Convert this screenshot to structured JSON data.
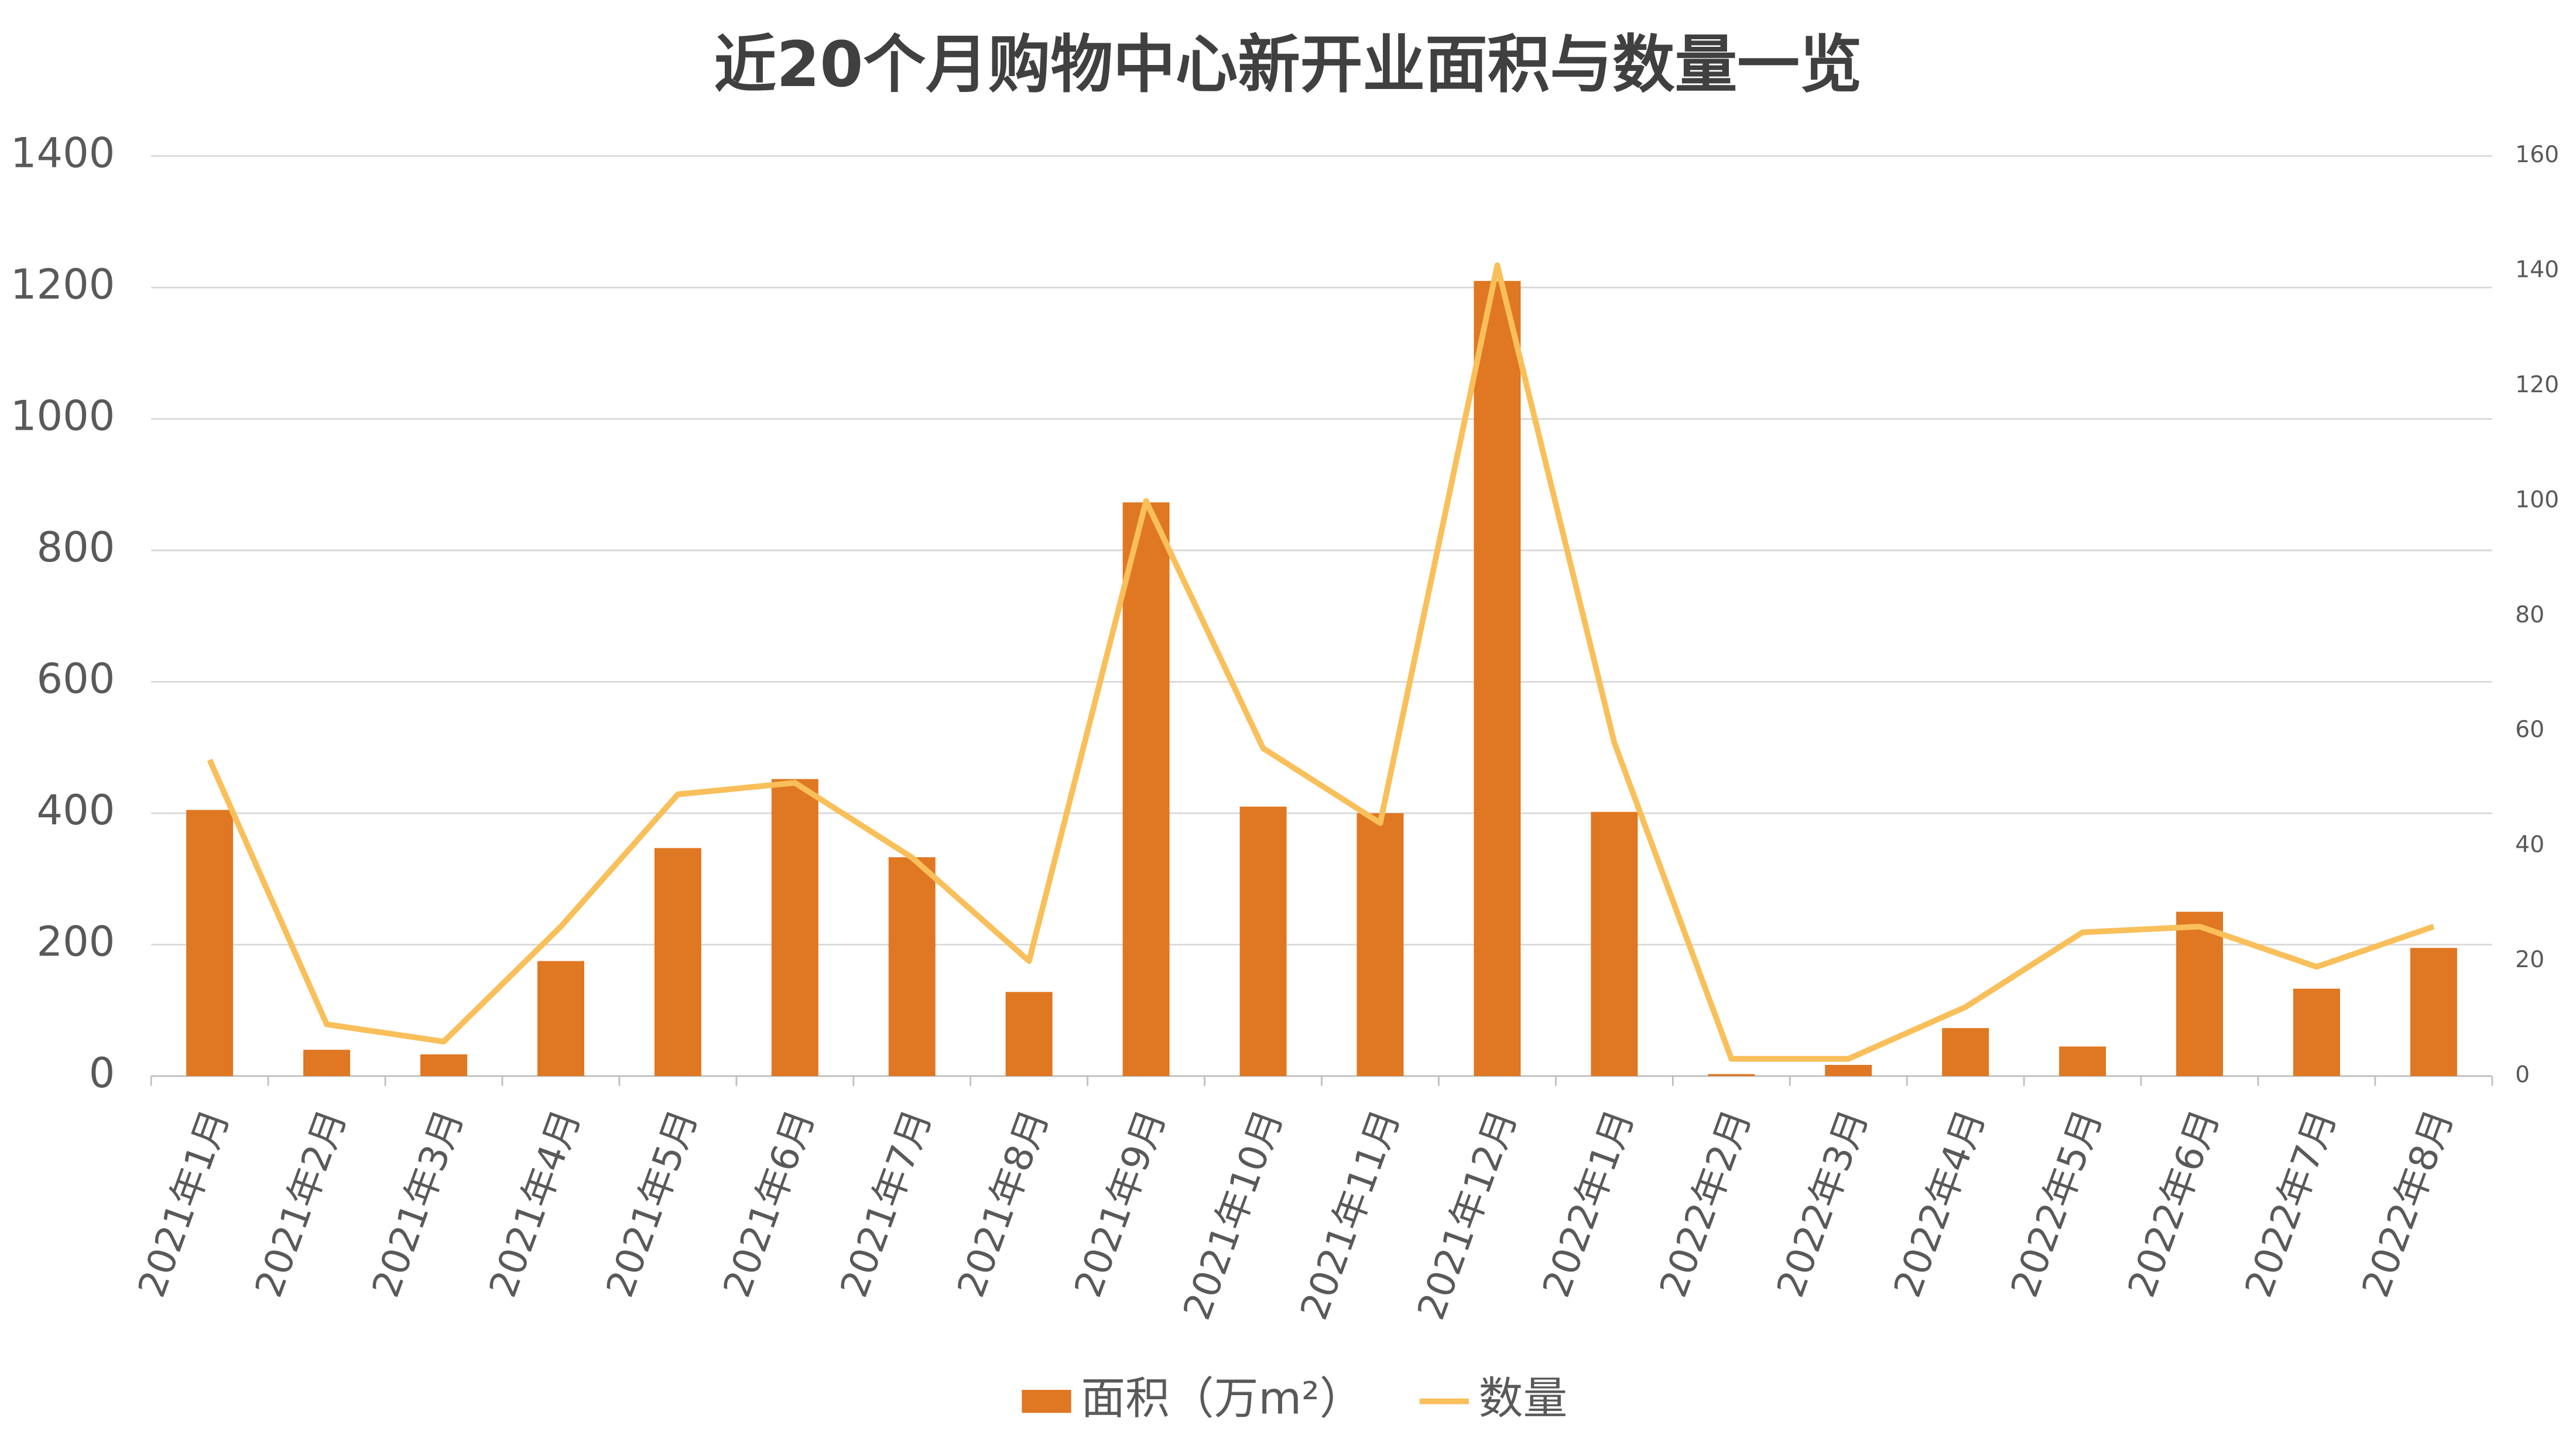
{
  "chart_data": {
    "type": "bar",
    "title": "近20个月购物中心新开业面积与数量一览",
    "categories": [
      "2021年1月",
      "2021年2月",
      "2021年3月",
      "2021年4月",
      "2021年5月",
      "2021年6月",
      "2021年7月",
      "2021年8月",
      "2021年9月",
      "2021年10月",
      "2021年11月",
      "2021年12月",
      "2022年1月",
      "2022年2月",
      "2022年3月",
      "2022年4月",
      "2022年5月",
      "2022年6月",
      "2022年7月",
      "2022年8月"
    ],
    "series": [
      {
        "name": "面积（万m²）",
        "type": "bar",
        "color": "#e07722",
        "values": [
          405,
          40,
          33,
          175,
          347,
          452,
          333,
          128,
          873,
          410,
          400,
          1210,
          402,
          3,
          17,
          73,
          45,
          250,
          133,
          195
        ]
      },
      {
        "name": "数量",
        "type": "line",
        "axis": "y2",
        "color": "#f9bf5a",
        "values": [
          55,
          9,
          6,
          26,
          49,
          51,
          38,
          20,
          100,
          57,
          44,
          141,
          58,
          3,
          3,
          12,
          25,
          26,
          19,
          26
        ]
      }
    ],
    "ylim": [
      0,
      1400
    ],
    "yticks": [
      0,
      200,
      400,
      600,
      800,
      1000,
      1200,
      1400
    ],
    "y2lim": [
      0,
      160
    ],
    "y2ticks": [
      0,
      20,
      40,
      60,
      80,
      100,
      120,
      140,
      160
    ],
    "grid": true,
    "legend": "bottom"
  }
}
